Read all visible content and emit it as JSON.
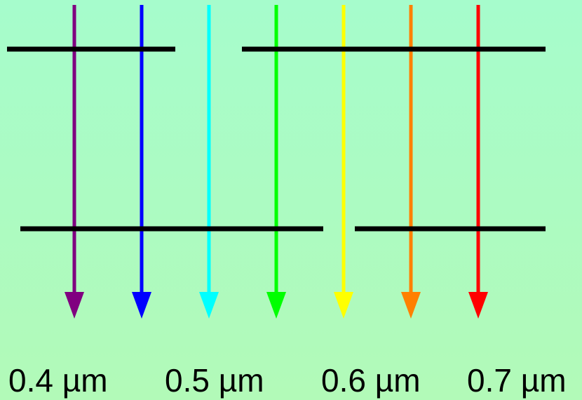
{
  "diagram": {
    "arrows": [
      {
        "name": "violet",
        "color": "#800080"
      },
      {
        "name": "blue",
        "color": "#0000ff"
      },
      {
        "name": "cyan",
        "color": "#00ffff"
      },
      {
        "name": "green",
        "color": "#00ff00"
      },
      {
        "name": "yellow",
        "color": "#ffff00"
      },
      {
        "name": "orange",
        "color": "#ff8000"
      },
      {
        "name": "red",
        "color": "#ff0000"
      }
    ],
    "bar_color": "#000000",
    "labels": [
      "0.4 µm",
      "0.5 µm",
      "0.6 µm",
      "0.7 µm"
    ]
  }
}
